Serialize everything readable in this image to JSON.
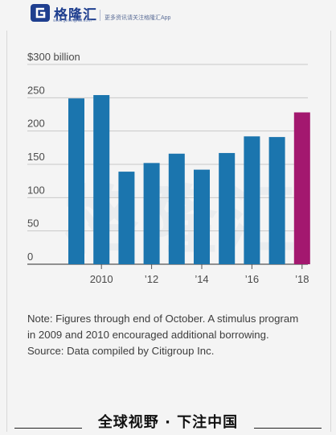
{
  "header": {
    "logo_text": "格隆汇",
    "logo_url": "www.gelonghui.com",
    "tagline": "更多资讯请关注格隆汇App",
    "logo_icon": "g-logo-icon"
  },
  "watermark": "格隆汇",
  "chart_data": {
    "type": "bar",
    "x": [
      2009,
      2010,
      2011,
      2012,
      2013,
      2014,
      2015,
      2016,
      2017,
      2018
    ],
    "values": [
      249,
      254,
      139,
      152,
      166,
      142,
      167,
      192,
      191,
      228
    ],
    "highlight_index": 9,
    "bar_color": "#1b75ae",
    "highlight_color": "#a3186f",
    "y_tick_labels": [
      "$300 billion",
      "250",
      "200",
      "150",
      "100",
      "50",
      "0"
    ],
    "y_tick_values": [
      300,
      250,
      200,
      150,
      100,
      50,
      0
    ],
    "x_tick_labels": [
      "2010",
      "’12",
      "’14",
      "’16",
      "’18"
    ],
    "x_tick_positions": [
      2010,
      2012,
      2014,
      2016,
      2018
    ],
    "ylim": [
      0,
      300
    ],
    "grid": true
  },
  "note": {
    "text": "Note: Figures through end of October. A stimulus program in 2009 and 2010 encouraged additional borrowing.",
    "source": "Source: Data compiled by Citigroup Inc."
  },
  "footer": {
    "text": "全球视野 · 下注中国"
  }
}
